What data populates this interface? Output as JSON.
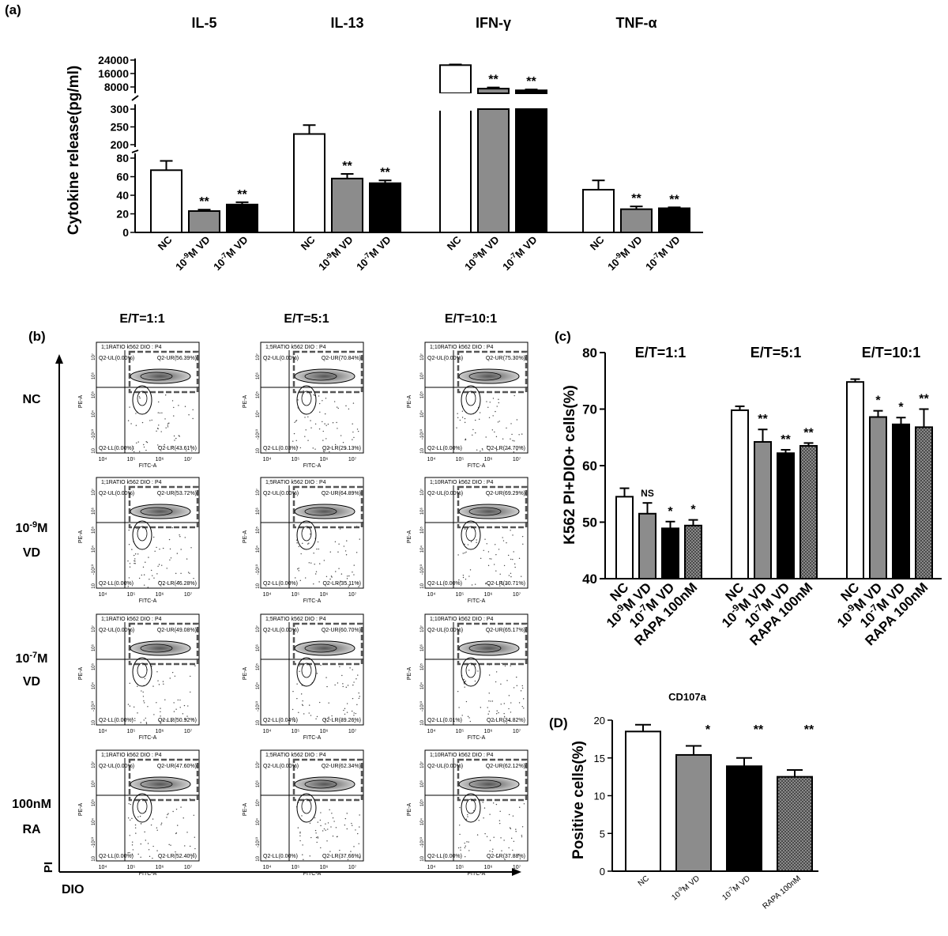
{
  "chart_data": [
    {
      "panel": "(a)",
      "type": "bar",
      "ylabel": "Cytokine release(pg/ml)",
      "broken_axis": true,
      "axis_segments": [
        {
          "range": [
            0,
            80
          ],
          "ticks": [
            "0",
            "20",
            "40",
            "60",
            "80"
          ]
        },
        {
          "range": [
            200,
            300
          ],
          "ticks": [
            "200",
            "250",
            "300"
          ]
        },
        {
          "range": [
            8000,
            24000
          ],
          "ticks": [
            "8000",
            "16000",
            "24000"
          ]
        }
      ],
      "categories": [
        "NC",
        "10^-9M VD",
        "10^-7M VD"
      ],
      "category_labels": [
        {
          "base": "NC",
          "sup": ""
        },
        {
          "base": "10",
          "sup": "-9",
          "tail": "M VD"
        },
        {
          "base": "10",
          "sup": "-7",
          "tail": "M VD"
        }
      ],
      "bar_colors": [
        "#ffffff",
        "#8c8c8c",
        "#000000"
      ],
      "groups": [
        {
          "name": "IL-5",
          "values": [
            67,
            23,
            30
          ],
          "errors": [
            10,
            1.5,
            2.5
          ],
          "sig": [
            "",
            "**",
            "**"
          ]
        },
        {
          "name": "IL-13",
          "values": [
            230,
            58,
            53
          ],
          "errors": [
            25,
            5,
            3
          ],
          "sig": [
            "",
            "**",
            "**"
          ]
        },
        {
          "name": "IFN-γ",
          "values": [
            21000,
            7000,
            6000
          ],
          "errors": [
            400,
            700,
            500
          ],
          "sig": [
            "",
            "**",
            "**"
          ]
        },
        {
          "name": "TNF-α",
          "values": [
            46,
            25,
            26
          ],
          "errors": [
            10,
            3,
            1
          ],
          "sig": [
            "",
            "**",
            "**"
          ]
        }
      ]
    },
    {
      "panel": "(c)",
      "type": "bar",
      "ylabel": "K562 PI+DIO+ cells(%)",
      "ylim": [
        40,
        80
      ],
      "yticks": [
        "40",
        "50",
        "60",
        "70",
        "80"
      ],
      "categories": [
        "NC",
        "10^-9M VD",
        "10^-7M VD",
        "RAPA 100nM"
      ],
      "category_labels": [
        {
          "base": "NC",
          "sup": ""
        },
        {
          "base": "10",
          "sup": "-9",
          "tail": "M VD"
        },
        {
          "base": "10",
          "sup": "-7",
          "tail": "M VD"
        },
        {
          "base": "RAPA 100nM",
          "sup": ""
        }
      ],
      "bar_fills": [
        "white",
        "gray",
        "black",
        "hatch"
      ],
      "groups": [
        {
          "name": "E/T=1:1",
          "values": [
            54.5,
            51.5,
            48.9,
            49.4
          ],
          "errors": [
            1.5,
            1.9,
            1.2,
            1.0
          ],
          "sig": [
            "",
            "NS",
            "*",
            "*"
          ]
        },
        {
          "name": "E/T=5:1",
          "values": [
            69.8,
            64.2,
            62.2,
            63.5
          ],
          "errors": [
            0.7,
            2.2,
            0.6,
            0.5
          ],
          "sig": [
            "",
            "**",
            "**",
            "**"
          ]
        },
        {
          "name": "E/T=10:1",
          "values": [
            74.8,
            68.6,
            67.3,
            66.8
          ],
          "errors": [
            0.5,
            1.1,
            1.2,
            3.2
          ],
          "sig": [
            "",
            "*",
            "*",
            "**"
          ]
        }
      ]
    },
    {
      "panel": "(D)",
      "type": "bar",
      "title": "CD107a",
      "ylabel": "Positive cells(%)",
      "ylim": [
        0,
        20
      ],
      "yticks": [
        "0",
        "5",
        "10",
        "15",
        "20"
      ],
      "categories": [
        "NC",
        "10^-9M VD",
        "10^-7M VD",
        "RAPA 100nM"
      ],
      "category_labels": [
        {
          "base": "NC",
          "sup": ""
        },
        {
          "base": "10",
          "sup": "-9",
          "tail": "M VD"
        },
        {
          "base": "10",
          "sup": "-7",
          "tail": "M VD"
        },
        {
          "base": "RAPA 100nM",
          "sup": ""
        }
      ],
      "bar_fills": [
        "white",
        "gray",
        "black",
        "hatch"
      ],
      "values": [
        18.5,
        15.4,
        13.9,
        12.5
      ],
      "errors": [
        0.9,
        1.2,
        1.1,
        0.9
      ],
      "sig": [
        "",
        "*",
        "**",
        "**"
      ]
    }
  ],
  "panel_b": {
    "label": "(b)",
    "columns": [
      "E/T=1:1",
      "E/T=5:1",
      "E/T=10:1"
    ],
    "rows": [
      {
        "l1": "NC",
        "l2": ""
      },
      {
        "l1": "10",
        "sup": "-9",
        "l1b": "M",
        "l2": "VD"
      },
      {
        "l1": "10",
        "sup": "-7",
        "l1b": "M",
        "l2": "VD"
      },
      {
        "l1": "100nM",
        "l2": "RA"
      }
    ],
    "ratio_prefix": [
      "1;1RATIO",
      "1;5RATIO",
      "1;10RATIO"
    ],
    "header_suffix": " k562 DIO : P4",
    "quadrant_values": [
      [
        {
          "ul": "0.00%",
          "ur": "56.39%",
          "ll": "0.00%",
          "lr": "43.61%"
        },
        {
          "ul": "0.00%",
          "ur": "70.84%",
          "ll": "0.03%",
          "lr": "29.13%"
        },
        {
          "ul": "0.00%",
          "ur": "75.30%",
          "ll": "0.00%",
          "lr": "24.70%"
        }
      ],
      [
        {
          "ul": "0.00%",
          "ur": "53.72%",
          "ll": "0.00%",
          "lr": "46.28%"
        },
        {
          "ul": "0.00%",
          "ur": "64.89%",
          "ll": "0.00%",
          "lr": "35.11%"
        },
        {
          "ul": "0.00%",
          "ur": "69.29%",
          "ll": "0.00%",
          "lr": "30.71%"
        }
      ],
      [
        {
          "ul": "0.00%",
          "ur": "49.08%",
          "ll": "0.00%",
          "lr": "50.92%"
        },
        {
          "ul": "0.00%",
          "ur": "60.70%",
          "ll": "0.04%",
          "lr": "39.26%"
        },
        {
          "ul": "0.00%",
          "ur": "65.17%",
          "ll": "0.01%",
          "lr": "34.82%"
        }
      ],
      [
        {
          "ul": "0.00%",
          "ur": "47.60%",
          "ll": "0.00%",
          "lr": "52.40%"
        },
        {
          "ul": "0.00%",
          "ur": "62.34%",
          "ll": "0.00%",
          "lr": "37.66%"
        },
        {
          "ul": "0.00%",
          "ur": "62.12%",
          "ll": "0.00%",
          "lr": "37.88%"
        }
      ]
    ],
    "x_axis_label": "FITC-A",
    "y_axis_label": "PE-A",
    "x_ticks": [
      "10⁴",
      "10⁵",
      "10⁶",
      "10⁷"
    ],
    "y_ticks": [
      "10⁷",
      "10⁶",
      "10⁵",
      "10⁴",
      "-10¹⁰",
      "10"
    ],
    "big_y_label": "PI",
    "big_x_label": "DIO"
  }
}
